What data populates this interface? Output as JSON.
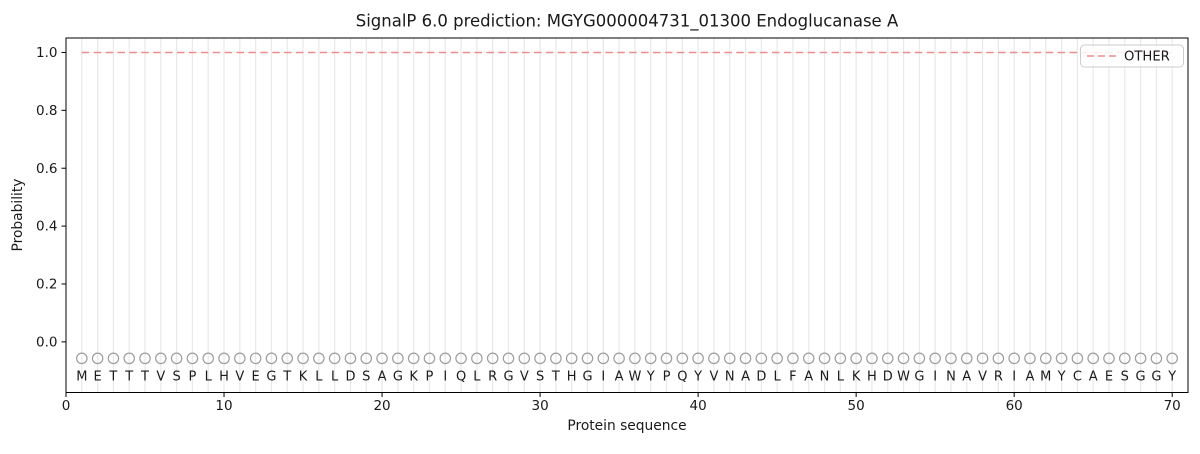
{
  "figure": {
    "title": "SignalP 6.0 prediction: MGYG000004731_01300 Endoglucanase A",
    "xlabel": "Protein sequence",
    "ylabel": "Probability"
  },
  "legend": {
    "label": "OTHER",
    "line_color": "#ef8c8c",
    "line_style": "dashed",
    "position": "upper right"
  },
  "chart_data": {
    "type": "line",
    "title": "SignalP 6.0 prediction: MGYG000004731_01300 Endoglucanase A",
    "xlabel": "Protein sequence",
    "ylabel": "Probability",
    "xlim": [
      0,
      71
    ],
    "ylim": [
      -0.175,
      1.05
    ],
    "x_ticks": [
      "0",
      "10",
      "20",
      "30",
      "40",
      "50",
      "60",
      "70"
    ],
    "y_ticks": [
      "0.0",
      "0.2",
      "0.4",
      "0.6",
      "0.8",
      "1.0"
    ],
    "grid": "vertical gridline at every residue position 1-70, no horizontal gridlines",
    "legend_position": "upper right",
    "sequence": "METTTVSPLHVEGTKLLDSAGKPIQLRGVSTHGIAWYPQYVNADLFANLKHDWGINAVRIAMYCAESGGY",
    "series": [
      {
        "name": "OTHER",
        "style": "dashed",
        "color": "#ef8c8c",
        "x": [
          1,
          2,
          3,
          4,
          5,
          6,
          7,
          8,
          9,
          10,
          11,
          12,
          13,
          14,
          15,
          16,
          17,
          18,
          19,
          20,
          21,
          22,
          23,
          24,
          25,
          26,
          27,
          28,
          29,
          30,
          31,
          32,
          33,
          34,
          35,
          36,
          37,
          38,
          39,
          40,
          41,
          42,
          43,
          44,
          45,
          46,
          47,
          48,
          49,
          50,
          51,
          52,
          53,
          54,
          55,
          56,
          57,
          58,
          59,
          60,
          61,
          62,
          63,
          64,
          65,
          66,
          67,
          68,
          69,
          70
        ],
        "values": [
          1.0,
          1.0,
          1.0,
          1.0,
          1.0,
          1.0,
          1.0,
          1.0,
          1.0,
          1.0,
          1.0,
          1.0,
          1.0,
          1.0,
          1.0,
          1.0,
          1.0,
          1.0,
          1.0,
          1.0,
          1.0,
          1.0,
          1.0,
          1.0,
          1.0,
          1.0,
          1.0,
          1.0,
          1.0,
          1.0,
          1.0,
          1.0,
          1.0,
          1.0,
          1.0,
          1.0,
          1.0,
          1.0,
          1.0,
          1.0,
          1.0,
          1.0,
          1.0,
          1.0,
          1.0,
          1.0,
          1.0,
          1.0,
          1.0,
          1.0,
          1.0,
          1.0,
          1.0,
          1.0,
          1.0,
          1.0,
          1.0,
          1.0,
          1.0,
          1.0,
          1.0,
          1.0,
          1.0,
          1.0,
          1.0,
          1.0,
          1.0,
          1.0,
          1.0,
          1.0
        ]
      }
    ],
    "residue_markers": {
      "shape": "open-circle",
      "color": "#9e9e9e",
      "y_value": -0.057
    },
    "sequence_row_y_value": -0.118,
    "styles": {
      "grid_color": "#e9e9e9",
      "sequence_color": "#1a1a1a",
      "spine_color": "#000000",
      "background": "#ffffff"
    }
  }
}
